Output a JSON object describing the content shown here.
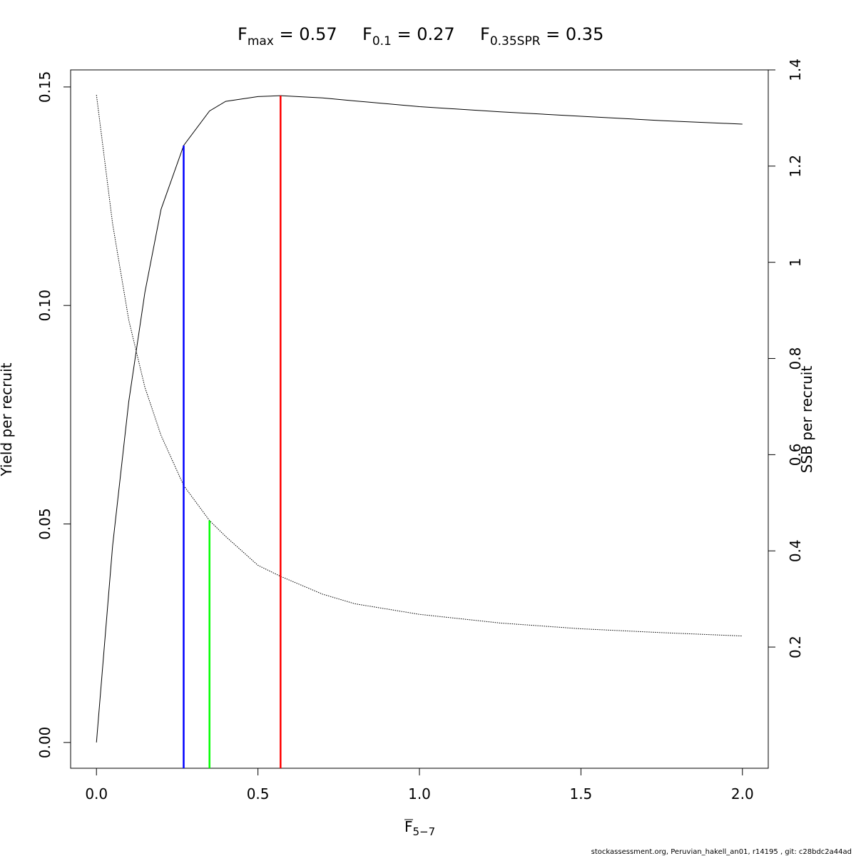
{
  "chart_data": {
    "type": "line",
    "title_parts": [
      {
        "main": "F",
        "sub": "max",
        "rest": " = 0.57"
      },
      {
        "main": "F",
        "sub": "0.1",
        "rest": " = 0.27"
      },
      {
        "main": "F",
        "sub": "0.35SPR",
        "rest": " = 0.35"
      }
    ],
    "xlabel": {
      "main": "F",
      "sub": "5−7"
    },
    "ylabel": "Yield per recruit",
    "y2label": "SSB per recruit",
    "footer": "stockassessment.org, Peruvian_hakell_an01, r14195 , git: c28bdc2a44ad",
    "x": [
      0,
      0.05,
      0.1,
      0.15,
      0.2,
      0.27,
      0.35,
      0.4,
      0.5,
      0.57,
      0.7,
      0.8,
      1.0,
      1.25,
      1.5,
      1.75,
      2.0
    ],
    "series": [
      {
        "color": "#000000",
        "dash": "solid",
        "axis": "y",
        "values": [
          0,
          0.045,
          0.078,
          0.103,
          0.122,
          0.1366,
          0.1445,
          0.1467,
          0.1478,
          0.148,
          0.1475,
          0.1468,
          0.1455,
          0.1443,
          0.1433,
          0.1423,
          0.1415
        ]
      },
      {
        "color": "#000000",
        "dash": "dotted",
        "axis": "y2",
        "values": [
          1.348,
          1.08,
          0.88,
          0.74,
          0.64,
          0.536,
          0.463,
          0.43,
          0.37,
          0.347,
          0.31,
          0.29,
          0.268,
          0.25,
          0.238,
          0.23,
          0.223
        ]
      }
    ],
    "vlines": [
      {
        "x": 0.27,
        "y": 0.1366,
        "axis": "y",
        "color": "#0000ff"
      },
      {
        "x": 0.35,
        "y": 0.463,
        "axis": "y2",
        "color": "#00ff00"
      },
      {
        "x": 0.57,
        "y": 0.148,
        "axis": "y",
        "color": "#ff0000"
      }
    ],
    "xlim": [
      -0.08,
      2.08
    ],
    "ylim": [
      -0.0059,
      0.1539
    ],
    "y2lim": [
      -0.052,
      1.4
    ],
    "xticks": [
      {
        "value": 0,
        "label": "0.0"
      },
      0.5,
      {
        "value": 1,
        "label": "1.0"
      },
      1.5,
      {
        "value": 2,
        "label": "2.0"
      }
    ],
    "yticks": [
      {
        "value": 0,
        "label": "0.00"
      },
      {
        "value": 0.05,
        "label": "0.05"
      },
      {
        "value": 0.1,
        "label": "0.10"
      },
      {
        "value": 0.15,
        "label": "0.15"
      }
    ],
    "y2ticks": [
      0.2,
      0.4,
      0.6,
      0.8,
      1,
      1.2,
      1.4
    ]
  }
}
